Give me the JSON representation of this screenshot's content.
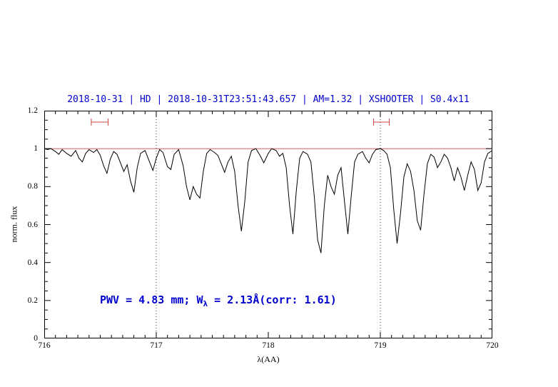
{
  "chart_data": {
    "type": "line",
    "title": "2018-10-31 | HD | 2018-10-31T23:51:43.657 | AM=1.32 | XSHOOTER | S0.4x11",
    "xlabel": "λ(AA)",
    "ylabel": "norm. flux",
    "xlim": [
      716,
      720
    ],
    "ylim": [
      0,
      1.2
    ],
    "x_major": 1,
    "x_minor": 0.1,
    "y_major": 0.2,
    "y_minor": 0.05,
    "grid": "off",
    "x_ticks": [
      {
        "v": 716,
        "label": "716"
      },
      {
        "v": 717,
        "label": "717"
      },
      {
        "v": 718,
        "label": "718"
      },
      {
        "v": 719,
        "label": "719"
      },
      {
        "v": 720,
        "label": "720"
      }
    ],
    "y_ticks": [
      {
        "v": 0,
        "label": "0"
      },
      {
        "v": 0.2,
        "label": "0.2"
      },
      {
        "v": 0.4,
        "label": "0.4"
      },
      {
        "v": 0.6,
        "label": "0.6"
      },
      {
        "v": 0.8,
        "label": "0.8"
      },
      {
        "v": 1,
        "label": "1"
      },
      {
        "v": 1.2,
        "label": "1.2"
      }
    ],
    "vlines": [
      717,
      719
    ],
    "markers": [
      {
        "x1": 716.42,
        "x2": 716.57,
        "y": 1.14
      },
      {
        "x1": 718.94,
        "x2": 719.08,
        "y": 1.14
      }
    ],
    "annotation": {
      "prefix": "PWV = 4.83 mm; W",
      "subscript": "λ",
      "suffix": " = 2.13Å(corr: 1.61)"
    },
    "colors": {
      "text": "#0000cd",
      "marker": "#cc4444",
      "spectrum": "#000000",
      "continuum": "#cc4444"
    },
    "series": [
      {
        "name": "continuum",
        "color": "#cc4444",
        "width": 0.8,
        "x": [
          716,
          720
        ],
        "y": [
          1,
          1
        ]
      },
      {
        "name": "spectrum",
        "color": "#000000",
        "width": 1,
        "x": [
          716.0,
          716.03,
          716.06,
          716.1,
          716.13,
          716.16,
          716.2,
          716.24,
          716.28,
          716.31,
          716.34,
          716.37,
          716.4,
          716.44,
          716.47,
          716.5,
          716.53,
          716.56,
          716.59,
          716.62,
          716.65,
          716.68,
          716.71,
          716.74,
          716.77,
          716.8,
          716.83,
          716.86,
          716.9,
          716.94,
          716.97,
          717.0,
          717.03,
          717.06,
          717.1,
          717.13,
          717.16,
          717.2,
          717.24,
          717.27,
          717.3,
          717.33,
          717.36,
          717.39,
          717.42,
          717.45,
          717.48,
          717.52,
          717.55,
          717.58,
          717.61,
          717.64,
          717.67,
          717.7,
          717.73,
          717.76,
          717.79,
          717.82,
          717.85,
          717.89,
          717.93,
          717.96,
          718.0,
          718.03,
          718.07,
          718.1,
          718.13,
          718.16,
          718.19,
          718.22,
          718.25,
          718.28,
          718.31,
          718.35,
          718.38,
          718.41,
          718.44,
          718.47,
          718.5,
          718.53,
          718.56,
          718.59,
          718.62,
          718.65,
          718.68,
          718.71,
          718.74,
          718.77,
          718.8,
          718.84,
          718.87,
          718.9,
          718.93,
          718.96,
          719.0,
          719.03,
          719.06,
          719.09,
          719.12,
          719.15,
          719.18,
          719.21,
          719.24,
          719.27,
          719.3,
          719.33,
          719.36,
          719.39,
          719.42,
          719.45,
          719.48,
          719.51,
          719.54,
          719.57,
          719.6,
          719.63,
          719.66,
          719.69,
          719.72,
          719.75,
          719.78,
          719.81,
          719.84,
          719.87,
          719.9,
          719.93,
          719.96,
          720.0
        ],
        "y": [
          1.0,
          0.995,
          1.0,
          0.985,
          0.97,
          0.995,
          0.975,
          0.96,
          0.99,
          0.95,
          0.93,
          0.975,
          0.995,
          0.98,
          0.995,
          0.965,
          0.91,
          0.87,
          0.945,
          0.985,
          0.97,
          0.925,
          0.88,
          0.915,
          0.83,
          0.77,
          0.9,
          0.975,
          0.99,
          0.93,
          0.885,
          0.95,
          0.995,
          0.98,
          0.905,
          0.89,
          0.97,
          0.995,
          0.91,
          0.8,
          0.73,
          0.8,
          0.76,
          0.74,
          0.88,
          0.975,
          0.995,
          0.98,
          0.965,
          0.92,
          0.875,
          0.93,
          0.96,
          0.88,
          0.7,
          0.565,
          0.72,
          0.93,
          0.99,
          1.0,
          0.96,
          0.925,
          0.975,
          1.0,
          0.99,
          0.96,
          0.975,
          0.9,
          0.7,
          0.55,
          0.78,
          0.95,
          0.985,
          0.97,
          0.93,
          0.75,
          0.52,
          0.45,
          0.7,
          0.86,
          0.8,
          0.76,
          0.86,
          0.9,
          0.72,
          0.55,
          0.75,
          0.93,
          0.97,
          0.985,
          0.95,
          0.925,
          0.97,
          0.995,
          1.0,
          0.99,
          0.97,
          0.9,
          0.68,
          0.5,
          0.66,
          0.85,
          0.92,
          0.88,
          0.78,
          0.62,
          0.57,
          0.76,
          0.92,
          0.97,
          0.955,
          0.9,
          0.93,
          0.97,
          0.95,
          0.9,
          0.83,
          0.9,
          0.85,
          0.78,
          0.86,
          0.93,
          0.89,
          0.78,
          0.82,
          0.93,
          0.975,
          0.99
        ]
      }
    ]
  }
}
